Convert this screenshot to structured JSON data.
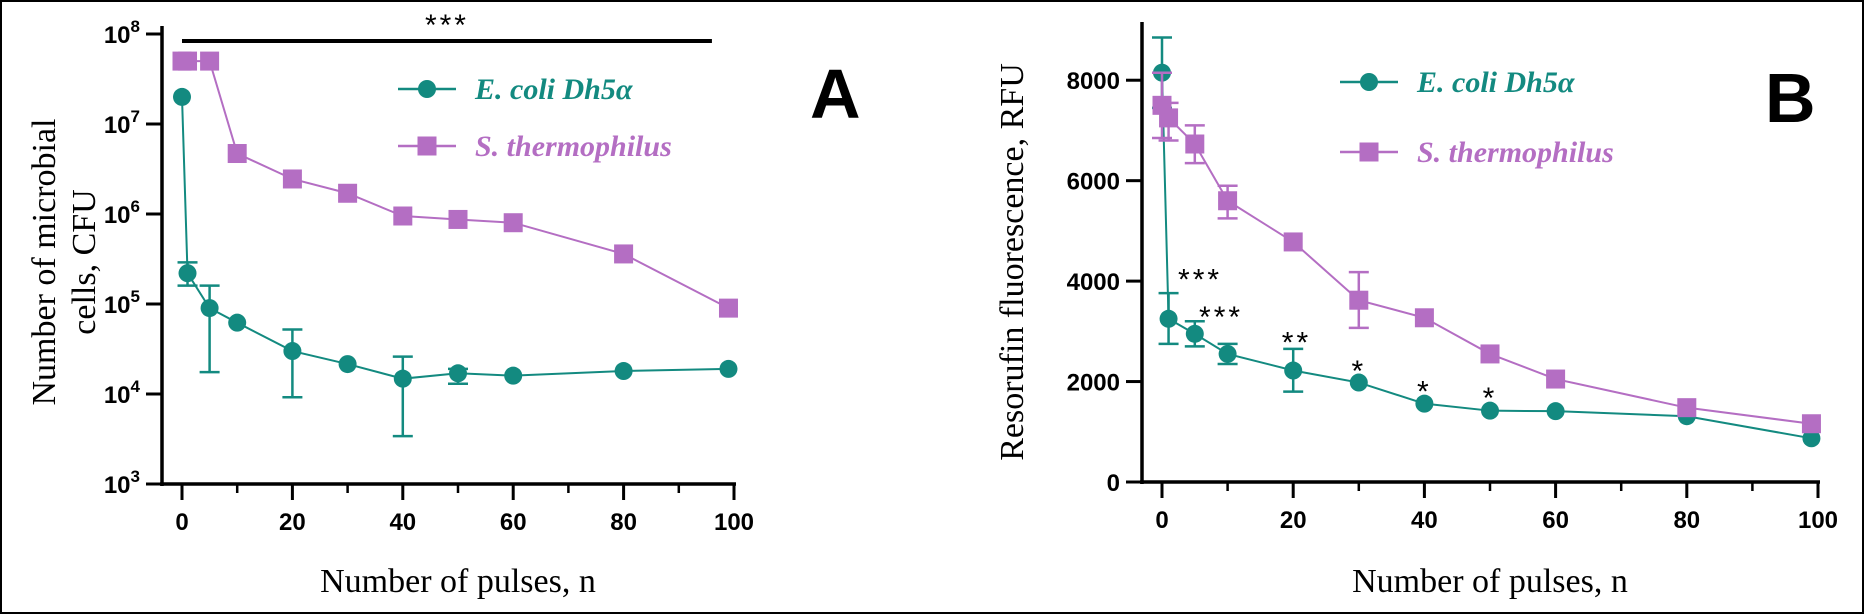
{
  "colors": {
    "ecoli": "#138a80",
    "strep": "#b46ec3",
    "axis": "#000000"
  },
  "chart_data": [
    {
      "type": "line",
      "panel": "A",
      "xlabel": "Number of pulses, n",
      "ylabel": [
        "Number of microbial",
        "cells, CFU"
      ],
      "xlim": [
        0,
        100
      ],
      "xticks": [
        0,
        20,
        40,
        60,
        80,
        100
      ],
      "xtick_labels": [
        "0",
        "20",
        "40",
        "60",
        "80",
        "100"
      ],
      "yscale": "log",
      "ylim": [
        1000,
        100000000
      ],
      "yticks": [
        1000,
        10000,
        100000,
        1000000,
        10000000,
        100000000
      ],
      "ytick_labels": [
        {
          "base": "10",
          "exp": "3"
        },
        {
          "base": "10",
          "exp": "4"
        },
        {
          "base": "10",
          "exp": "5"
        },
        {
          "base": "10",
          "exp": "6"
        },
        {
          "base": "10",
          "exp": "7"
        },
        {
          "base": "10",
          "exp": "8"
        }
      ],
      "legend_position": "top-right",
      "series": [
        {
          "name": "E. coli Dh5α",
          "marker": "circle",
          "color": "#138a80",
          "x": [
            0,
            1,
            5,
            10,
            20,
            30,
            40,
            50,
            60,
            80,
            99
          ],
          "y": [
            20000000,
            220000,
            90000,
            62000,
            30000,
            21500,
            14800,
            17000,
            16000,
            18000,
            19000
          ],
          "y_low": [
            null,
            160000,
            17500,
            null,
            9200,
            null,
            3400,
            13000,
            null,
            null,
            null
          ],
          "y_high": [
            null,
            290000,
            160000,
            null,
            52000,
            null,
            26000,
            19000,
            null,
            null,
            null
          ]
        },
        {
          "name": "S. thermophilus",
          "marker": "square",
          "color": "#b46ec3",
          "x": [
            0,
            1,
            5,
            10,
            20,
            30,
            40,
            50,
            60,
            80,
            99
          ],
          "y": [
            50000000,
            50000000,
            50000000,
            4700000,
            2450000,
            1700000,
            950000,
            870000,
            800000,
            360000,
            90000
          ],
          "y_low": [
            null,
            null,
            null,
            null,
            null,
            null,
            null,
            null,
            null,
            null,
            null
          ],
          "y_high": [
            null,
            null,
            null,
            null,
            null,
            null,
            null,
            null,
            null,
            null,
            null
          ]
        }
      ],
      "annotations": [
        {
          "text": "***",
          "type": "bracket",
          "x_start": 0,
          "x_end": 96
        }
      ]
    },
    {
      "type": "line",
      "panel": "B",
      "xlabel": "Number of pulses, n",
      "ylabel": [
        "Resorufin fluorescence, RFU"
      ],
      "xlim": [
        0,
        100
      ],
      "xticks": [
        0,
        20,
        40,
        60,
        80,
        100
      ],
      "xtick_labels": [
        "0",
        "20",
        "40",
        "60",
        "80",
        "100"
      ],
      "yscale": "linear",
      "ylim": [
        0,
        9000
      ],
      "yticks": [
        0,
        2000,
        4000,
        6000,
        8000
      ],
      "ytick_labels": [
        "0",
        "2000",
        "4000",
        "6000",
        "8000"
      ],
      "legend_position": "top-right",
      "series": [
        {
          "name": "E. coli Dh5α",
          "marker": "circle",
          "color": "#138a80",
          "x": [
            0,
            1,
            5,
            10,
            20,
            30,
            40,
            50,
            60,
            80,
            99
          ],
          "y": [
            8150,
            3250,
            2950,
            2550,
            2220,
            1980,
            1560,
            1420,
            1410,
            1310,
            870
          ],
          "y_low": [
            7450,
            2750,
            2700,
            2350,
            1800,
            null,
            null,
            null,
            null,
            null,
            null
          ],
          "y_high": [
            8850,
            3760,
            3200,
            2750,
            2650,
            null,
            null,
            null,
            null,
            null,
            null
          ]
        },
        {
          "name": "S. thermophilus",
          "marker": "square",
          "color": "#b46ec3",
          "x": [
            0,
            1,
            5,
            10,
            20,
            30,
            40,
            50,
            60,
            80,
            99
          ],
          "y": [
            7500,
            7250,
            6730,
            5600,
            4780,
            3620,
            3270,
            2550,
            2050,
            1480,
            1160
          ],
          "y_low": [
            6850,
            6800,
            6350,
            5250,
            null,
            3070,
            null,
            null,
            null,
            null,
            null
          ],
          "y_high": [
            8150,
            7550,
            7100,
            5900,
            null,
            4180,
            null,
            null,
            null,
            null,
            null
          ]
        }
      ],
      "annotations": [
        {
          "text": "***",
          "x": 5.8,
          "y": 4150
        },
        {
          "text": "***",
          "x": 9,
          "y": 3400
        },
        {
          "text": "**",
          "x": 20.5,
          "y": 2900
        },
        {
          "text": "*",
          "x": 30,
          "y": 2330
        },
        {
          "text": "*",
          "x": 40,
          "y": 1920
        },
        {
          "text": "*",
          "x": 50,
          "y": 1790
        }
      ]
    }
  ]
}
